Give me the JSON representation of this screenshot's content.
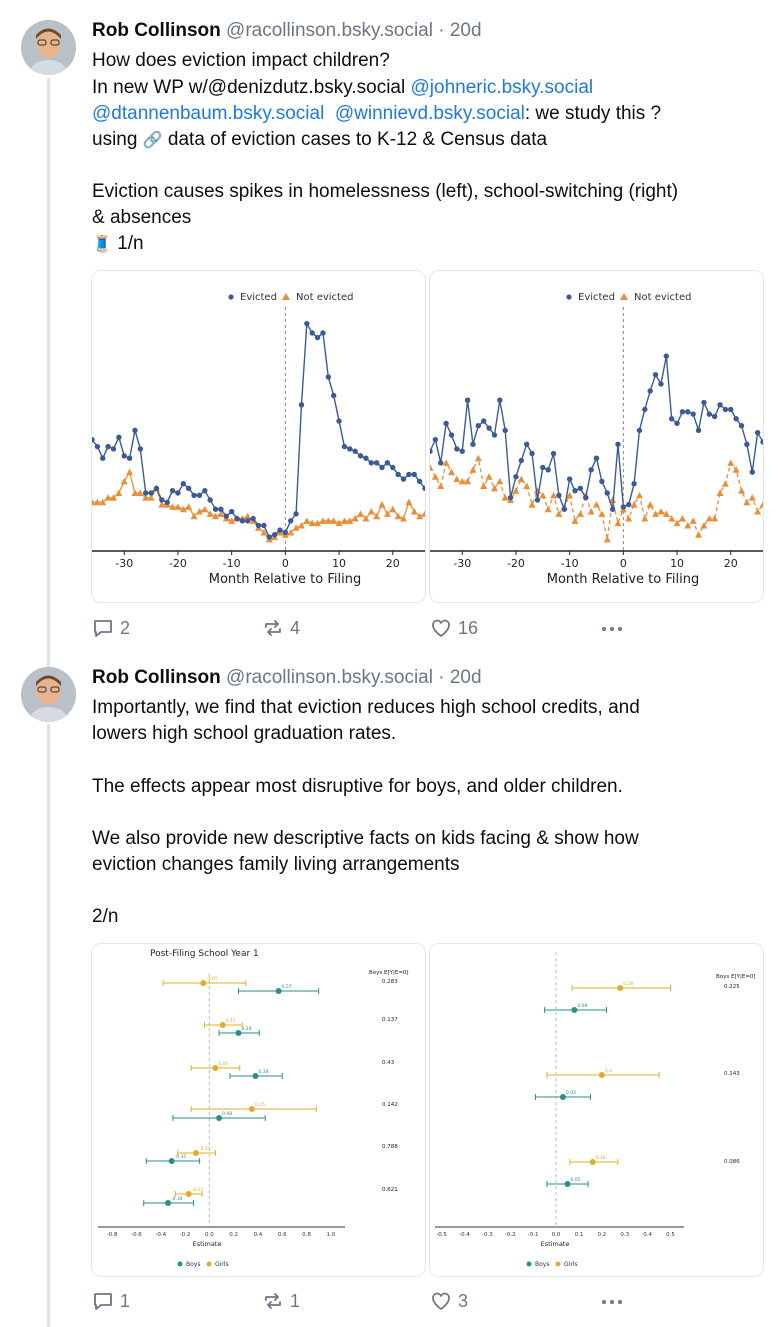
{
  "posts": [
    {
      "author": "Rob Collinson",
      "handle": "@racollinson.bsky.social",
      "separator": "·",
      "time": "20d",
      "lines": {
        "l1": "How does eviction impact children?",
        "l2_a": "In new WP w/@denizdutz.bsky.social ",
        "l2_b": "@johneric.bsky.social",
        "l3_a": "@dtannenbaum.bsky.social",
        "l3_b": "@winnievd.bsky.social",
        "l3_c": ": we study this ?",
        "l4_a": "using ",
        "l4_emoji": "🔗",
        "l4_b": " data of eviction cases to K-12 & Census data",
        "l5": "Eviction causes spikes in homelessness (left), school-switching (right)",
        "l6": "& absences",
        "l7_emoji": "🧵",
        "l7": " 1/n"
      },
      "replies": "2",
      "reposts": "4",
      "likes": "16"
    },
    {
      "author": "Rob Collinson",
      "handle": "@racollinson.bsky.social",
      "separator": "·",
      "time": "20d",
      "lines": {
        "p1": "Importantly, we find that eviction reduces high school credits, and",
        "p2": "lowers high school graduation rates.",
        "p3": "The effects appear most disruptive for boys, and older children.",
        "p4": "We also provide new descriptive facts on kids facing & show how",
        "p5": "eviction changes family living arrangements",
        "p6": "2/n"
      },
      "replies": "1",
      "reposts": "1",
      "likes": "3"
    }
  ],
  "icons": {
    "reply": "reply-bubble-icon",
    "repost": "repost-arrows-icon",
    "like": "heart-icon",
    "more": "more-dots-icon"
  },
  "colors": {
    "mention": "#1f7ae0",
    "evicted": "#3b5a96",
    "not_evicted": "#ea8e3a",
    "boys": "#2a8f8a",
    "girls": "#e0ac2b"
  },
  "chart_data": [
    {
      "type": "line",
      "legend": [
        "Evicted",
        "Not evicted"
      ],
      "xlabel": "Month Relative to Filing",
      "xticks": [
        "-30",
        "-20",
        "-10",
        "0",
        "10",
        "20"
      ],
      "xlim": [
        -36,
        26
      ],
      "ylim": [
        0,
        1
      ],
      "series": [
        {
          "name": "Evicted",
          "x": [
            -36,
            -35,
            -34,
            -33,
            -32,
            -31,
            -30,
            -29,
            -28,
            -27,
            -26,
            -25,
            -24,
            -23,
            -22,
            -21,
            -20,
            -19,
            -18,
            -17,
            -16,
            -15,
            -14,
            -13,
            -12,
            -11,
            -10,
            -9,
            -8,
            -7,
            -6,
            -5,
            -4,
            -3,
            -2,
            -1,
            0,
            1,
            2,
            3,
            4,
            5,
            6,
            7,
            8,
            9,
            10,
            11,
            12,
            13,
            14,
            15,
            16,
            17,
            18,
            19,
            20,
            21,
            22,
            23,
            24,
            25,
            26
          ],
          "values": [
            0.48,
            0.45,
            0.4,
            0.45,
            0.44,
            0.49,
            0.41,
            0.4,
            0.52,
            0.44,
            0.25,
            0.25,
            0.27,
            0.22,
            0.21,
            0.26,
            0.25,
            0.29,
            0.27,
            0.24,
            0.24,
            0.26,
            0.22,
            0.18,
            0.18,
            0.15,
            0.17,
            0.14,
            0.13,
            0.13,
            0.14,
            0.11,
            0.11,
            0.06,
            0.07,
            0.09,
            0.08,
            0.13,
            0.16,
            0.63,
            0.98,
            0.94,
            0.92,
            0.94,
            0.75,
            0.67,
            0.56,
            0.45,
            0.44,
            0.43,
            0.41,
            0.4,
            0.38,
            0.38,
            0.36,
            0.38,
            0.36,
            0.33,
            0.31,
            0.33,
            0.33,
            0.3,
            0.27
          ]
        },
        {
          "name": "Not evicted",
          "x": [
            -36,
            -35,
            -34,
            -33,
            -32,
            -31,
            -30,
            -29,
            -28,
            -27,
            -26,
            -25,
            -24,
            -23,
            -22,
            -21,
            -20,
            -19,
            -18,
            -17,
            -16,
            -15,
            -14,
            -13,
            -12,
            -11,
            -10,
            -9,
            -8,
            -7,
            -6,
            -5,
            -4,
            -3,
            -2,
            -1,
            0,
            1,
            2,
            3,
            4,
            5,
            6,
            7,
            8,
            9,
            10,
            11,
            12,
            13,
            14,
            15,
            16,
            17,
            18,
            19,
            20,
            21,
            22,
            23,
            24,
            25,
            26
          ],
          "values": [
            0.21,
            0.21,
            0.21,
            0.23,
            0.23,
            0.25,
            0.3,
            0.34,
            0.25,
            0.25,
            0.23,
            0.23,
            0.27,
            0.2,
            0.2,
            0.19,
            0.19,
            0.18,
            0.19,
            0.15,
            0.17,
            0.18,
            0.16,
            0.15,
            0.16,
            0.14,
            0.13,
            0.14,
            0.14,
            0.15,
            0.13,
            0.1,
            0.08,
            0.05,
            0.06,
            0.08,
            0.07,
            0.08,
            0.1,
            0.11,
            0.13,
            0.12,
            0.12,
            0.13,
            0.13,
            0.13,
            0.12,
            0.13,
            0.13,
            0.14,
            0.16,
            0.14,
            0.17,
            0.15,
            0.2,
            0.16,
            0.18,
            0.15,
            0.14,
            0.21,
            0.17,
            0.15,
            0.16
          ]
        }
      ]
    },
    {
      "type": "line",
      "legend": [
        "Evicted",
        "Not evicted"
      ],
      "xlabel": "Month Relative to Filing",
      "xticks": [
        "-30",
        "-20",
        "-10",
        "0",
        "10",
        "20"
      ],
      "xlim": [
        -36,
        26
      ],
      "ylim": [
        0,
        1
      ],
      "series": [
        {
          "name": "Evicted",
          "x": [
            -36,
            -35,
            -34,
            -33,
            -32,
            -31,
            -30,
            -29,
            -28,
            -27,
            -26,
            -25,
            -24,
            -23,
            -22,
            -21,
            -20,
            -19,
            -18,
            -17,
            -16,
            -15,
            -14,
            -13,
            -12,
            -11,
            -10,
            -9,
            -8,
            -7,
            -6,
            -5,
            -4,
            -3,
            -2,
            -1,
            0,
            1,
            2,
            3,
            4,
            5,
            6,
            7,
            8,
            9,
            10,
            11,
            12,
            13,
            14,
            15,
            16,
            17,
            18,
            19,
            20,
            21,
            22,
            23,
            24,
            25,
            26
          ],
          "values": [
            0.43,
            0.48,
            0.38,
            0.55,
            0.5,
            0.44,
            0.43,
            0.65,
            0.46,
            0.54,
            0.56,
            0.53,
            0.5,
            0.65,
            0.52,
            0.23,
            0.32,
            0.39,
            0.46,
            0.42,
            0.22,
            0.36,
            0.35,
            0.42,
            0.24,
            0.18,
            0.31,
            0.26,
            0.27,
            0.23,
            0.35,
            0.4,
            0.3,
            0.25,
            0.18,
            0.46,
            0.19,
            0.2,
            0.29,
            0.52,
            0.61,
            0.69,
            0.76,
            0.72,
            0.84,
            0.57,
            0.55,
            0.6,
            0.6,
            0.59,
            0.52,
            0.64,
            0.59,
            0.58,
            0.63,
            0.61,
            0.61,
            0.57,
            0.54,
            0.46,
            0.34,
            0.51,
            0.47
          ]
        },
        {
          "name": "Not evicted",
          "x": [
            -36,
            -35,
            -34,
            -33,
            -32,
            -31,
            -30,
            -29,
            -28,
            -27,
            -26,
            -25,
            -24,
            -23,
            -22,
            -21,
            -20,
            -19,
            -18,
            -17,
            -16,
            -15,
            -14,
            -13,
            -12,
            -11,
            -10,
            -9,
            -8,
            -7,
            -6,
            -5,
            -4,
            -3,
            -2,
            -1,
            0,
            1,
            2,
            3,
            4,
            5,
            6,
            7,
            8,
            9,
            10,
            11,
            12,
            13,
            14,
            15,
            16,
            17,
            18,
            19,
            20,
            21,
            22,
            23,
            24,
            25,
            26
          ],
          "values": [
            0.36,
            0.32,
            0.28,
            0.38,
            0.34,
            0.31,
            0.3,
            0.3,
            0.35,
            0.4,
            0.28,
            0.32,
            0.27,
            0.3,
            0.23,
            0.22,
            0.26,
            0.31,
            0.28,
            0.2,
            0.26,
            0.24,
            0.18,
            0.24,
            0.16,
            0.19,
            0.24,
            0.13,
            0.16,
            0.24,
            0.17,
            0.2,
            0.16,
            0.05,
            0.22,
            0.12,
            0.18,
            0.14,
            0.2,
            0.24,
            0.14,
            0.2,
            0.16,
            0.17,
            0.16,
            0.14,
            0.12,
            0.14,
            0.11,
            0.13,
            0.07,
            0.11,
            0.14,
            0.14,
            0.25,
            0.29,
            0.38,
            0.35,
            0.26,
            0.21,
            0.23,
            0.17,
            0.2
          ]
        }
      ]
    },
    {
      "type": "scatter",
      "subtitle": "Post-Filing School Year 1",
      "xlabel": "Estimate",
      "xticks": [
        "-0.8",
        "-0.6",
        "-0.4",
        "-0.2",
        "0.0",
        "0.2",
        "0.4",
        "0.6",
        "0.8",
        "1.0"
      ],
      "xlim": [
        -0.9,
        1.1
      ],
      "legend": [
        "Boys",
        "Girls"
      ],
      "right_header": "Boys E[Y|E=0]",
      "right_values": [
        "0.283",
        "0.137",
        "0.43",
        "0.142",
        "0.788",
        "0.621"
      ],
      "rows": [
        {
          "series": "Girls",
          "est": -0.05,
          "lo": -0.38,
          "hi": 0.3,
          "label": "-0.05"
        },
        {
          "series": "Boys",
          "est": 0.57,
          "lo": 0.24,
          "hi": 0.9,
          "label": "0.57"
        },
        {
          "series": "Girls",
          "est": 0.11,
          "lo": -0.04,
          "hi": 0.27,
          "label": "0.11"
        },
        {
          "series": "Boys",
          "est": 0.24,
          "lo": 0.08,
          "hi": 0.41,
          "label": "0.24"
        },
        {
          "series": "Girls",
          "est": 0.05,
          "lo": -0.15,
          "hi": 0.25,
          "label": "0.05"
        },
        {
          "series": "Boys",
          "est": 0.38,
          "lo": 0.17,
          "hi": 0.6,
          "label": "0.38"
        },
        {
          "series": "Girls",
          "est": 0.35,
          "lo": -0.15,
          "hi": 0.88,
          "label": "0.35"
        },
        {
          "series": "Boys",
          "est": 0.08,
          "lo": -0.3,
          "hi": 0.46,
          "label": "0.08"
        },
        {
          "series": "Girls",
          "est": -0.11,
          "lo": -0.26,
          "hi": 0.05,
          "label": "-0.11"
        },
        {
          "series": "Boys",
          "est": -0.31,
          "lo": -0.52,
          "hi": -0.08,
          "label": "-0.31"
        },
        {
          "series": "Girls",
          "est": -0.17,
          "lo": -0.28,
          "hi": -0.06,
          "label": "-0.17"
        },
        {
          "series": "Boys",
          "est": -0.34,
          "lo": -0.54,
          "hi": -0.13,
          "label": "-0.34"
        }
      ]
    },
    {
      "type": "scatter",
      "xlabel": "Estimate",
      "xticks": [
        "-0.5",
        "-0.4",
        "-0.3",
        "-0.2",
        "-0.1",
        "0.0",
        "0.1",
        "0.2",
        "0.3",
        "0.4",
        "0.5"
      ],
      "xlim": [
        -0.52,
        0.55
      ],
      "legend": [
        "Boys",
        "Girls"
      ],
      "right_header": "Boys E[Y|E=0]",
      "right_values": [
        "0.225",
        "0.143",
        "0.086"
      ],
      "rows": [
        {
          "series": "Girls",
          "est": 0.28,
          "lo": 0.07,
          "hi": 0.5,
          "label": "0.28"
        },
        {
          "series": "Boys",
          "est": 0.08,
          "lo": -0.05,
          "hi": 0.22,
          "label": "0.08"
        },
        {
          "series": "Girls",
          "est": 0.2,
          "lo": -0.04,
          "hi": 0.45,
          "label": "0.2"
        },
        {
          "series": "Boys",
          "est": 0.03,
          "lo": -0.09,
          "hi": 0.15,
          "label": "0.03"
        },
        {
          "series": "Girls",
          "est": 0.16,
          "lo": 0.06,
          "hi": 0.27,
          "label": "0.16"
        },
        {
          "series": "Boys",
          "est": 0.05,
          "lo": -0.04,
          "hi": 0.14,
          "label": "0.05"
        }
      ]
    }
  ]
}
